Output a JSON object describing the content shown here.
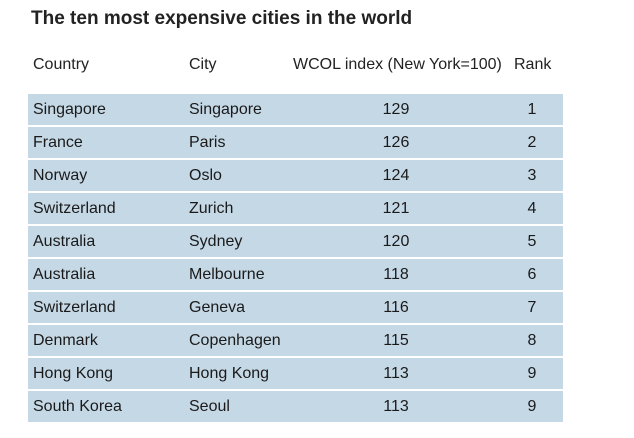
{
  "chart_data": {
    "type": "table",
    "title": "The ten most expensive cities in the world",
    "columns": [
      "Country",
      "City",
      "WCOL index (New York=100)",
      "Rank"
    ],
    "rows": [
      {
        "country": "Singapore",
        "city": "Singapore",
        "index": "129",
        "rank": "1"
      },
      {
        "country": "France",
        "city": "Paris",
        "index": "126",
        "rank": "2"
      },
      {
        "country": "Norway",
        "city": "Oslo",
        "index": "124",
        "rank": "3"
      },
      {
        "country": "Switzerland",
        "city": "Zurich",
        "index": "121",
        "rank": "4"
      },
      {
        "country": "Australia",
        "city": "Sydney",
        "index": "120",
        "rank": "5"
      },
      {
        "country": "Australia",
        "city": "Melbourne",
        "index": "118",
        "rank": "6"
      },
      {
        "country": "Switzerland",
        "city": "Geneva",
        "index": "116",
        "rank": "7"
      },
      {
        "country": "Denmark",
        "city": "Copenhagen",
        "index": "115",
        "rank": "8"
      },
      {
        "country": "Hong Kong",
        "city": "Hong Kong",
        "index": "113",
        "rank": "9"
      },
      {
        "country": "South Korea",
        "city": "Seoul",
        "index": "113",
        "rank": "9"
      }
    ]
  },
  "colors": {
    "row_background": "#c5d8e6"
  }
}
